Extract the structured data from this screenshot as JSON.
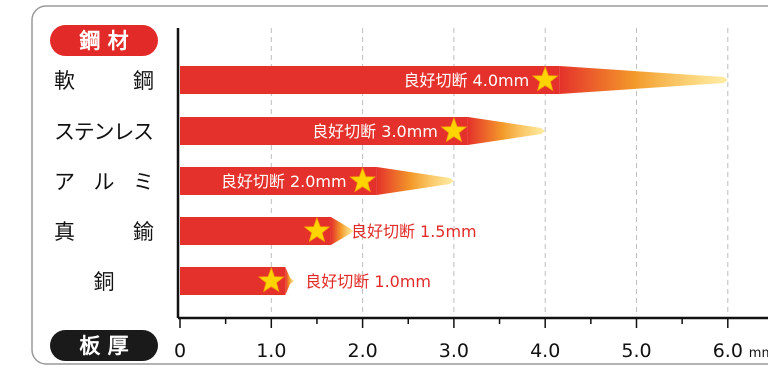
{
  "header": {
    "material_title": "鋼 材",
    "thickness_title": "板 厚"
  },
  "colors": {
    "bar_red": "#e5312b",
    "bar_yellow": "#ffe066",
    "star": "#ffd400",
    "label_red": "#e22b28",
    "pill_red": "#e22b28",
    "pill_dark": "#1a1a1a"
  },
  "chart_data": {
    "type": "bar",
    "orientation": "horizontal",
    "categories": [
      "軟　　鋼",
      "ステンレス",
      "ア　ル　ミ",
      "真　　鍮",
      "銅"
    ],
    "values": [
      4.0,
      3.0,
      2.0,
      1.5,
      1.0
    ],
    "tail_end": [
      6.0,
      4.0,
      3.0,
      1.9,
      1.25
    ],
    "data_labels": [
      "良好切断 4.0mm",
      "良好切断 3.0mm",
      "良好切断 2.0mm",
      "良好切断 1.5mm",
      "良好切断 1.0mm"
    ],
    "x_ticks": [
      "0",
      "1.0",
      "2.0",
      "3.0",
      "4.0",
      "5.0",
      "6.0"
    ],
    "x_unit": "mm",
    "xlim": [
      0,
      6.0
    ],
    "grid": true
  }
}
